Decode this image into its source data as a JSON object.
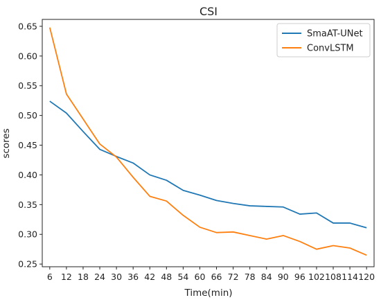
{
  "chart_data": {
    "type": "line",
    "title": "CSI",
    "xlabel": "Time(min)",
    "ylabel": "scores",
    "x": [
      6,
      12,
      18,
      24,
      30,
      36,
      42,
      48,
      54,
      60,
      66,
      72,
      78,
      84,
      90,
      96,
      102,
      108,
      114,
      120
    ],
    "x_tick_labels": [
      "6",
      "12",
      "18",
      "24",
      "30",
      "36",
      "42",
      "48",
      "54",
      "60",
      "66",
      "72",
      "78",
      "84",
      "90",
      "96",
      "102",
      "108",
      "114",
      "120"
    ],
    "y_ticks": [
      0.25,
      0.3,
      0.35,
      0.4,
      0.45,
      0.5,
      0.55,
      0.6,
      0.65
    ],
    "y_tick_labels": [
      "0.25",
      "0.30",
      "0.35",
      "0.40",
      "0.45",
      "0.50",
      "0.55",
      "0.60",
      "0.65"
    ],
    "xlim": [
      3.3,
      122.7
    ],
    "ylim": [
      0.2455,
      0.6616
    ],
    "grid": false,
    "legend_position": "top-right",
    "series": [
      {
        "name": "SmaAT-UNet",
        "color": "#1f77b4",
        "values": [
          0.524,
          0.504,
          0.473,
          0.443,
          0.431,
          0.42,
          0.4,
          0.391,
          0.374,
          0.366,
          0.357,
          0.352,
          0.348,
          0.347,
          0.346,
          0.334,
          0.336,
          0.319,
          0.319,
          0.311
        ]
      },
      {
        "name": "ConvLSTM",
        "color": "#ff7f0e",
        "values": [
          0.648,
          0.536,
          0.494,
          0.452,
          0.43,
          0.396,
          0.364,
          0.356,
          0.332,
          0.312,
          0.303,
          0.304,
          0.298,
          0.292,
          0.298,
          0.288,
          0.275,
          0.281,
          0.277,
          0.265
        ]
      }
    ]
  }
}
